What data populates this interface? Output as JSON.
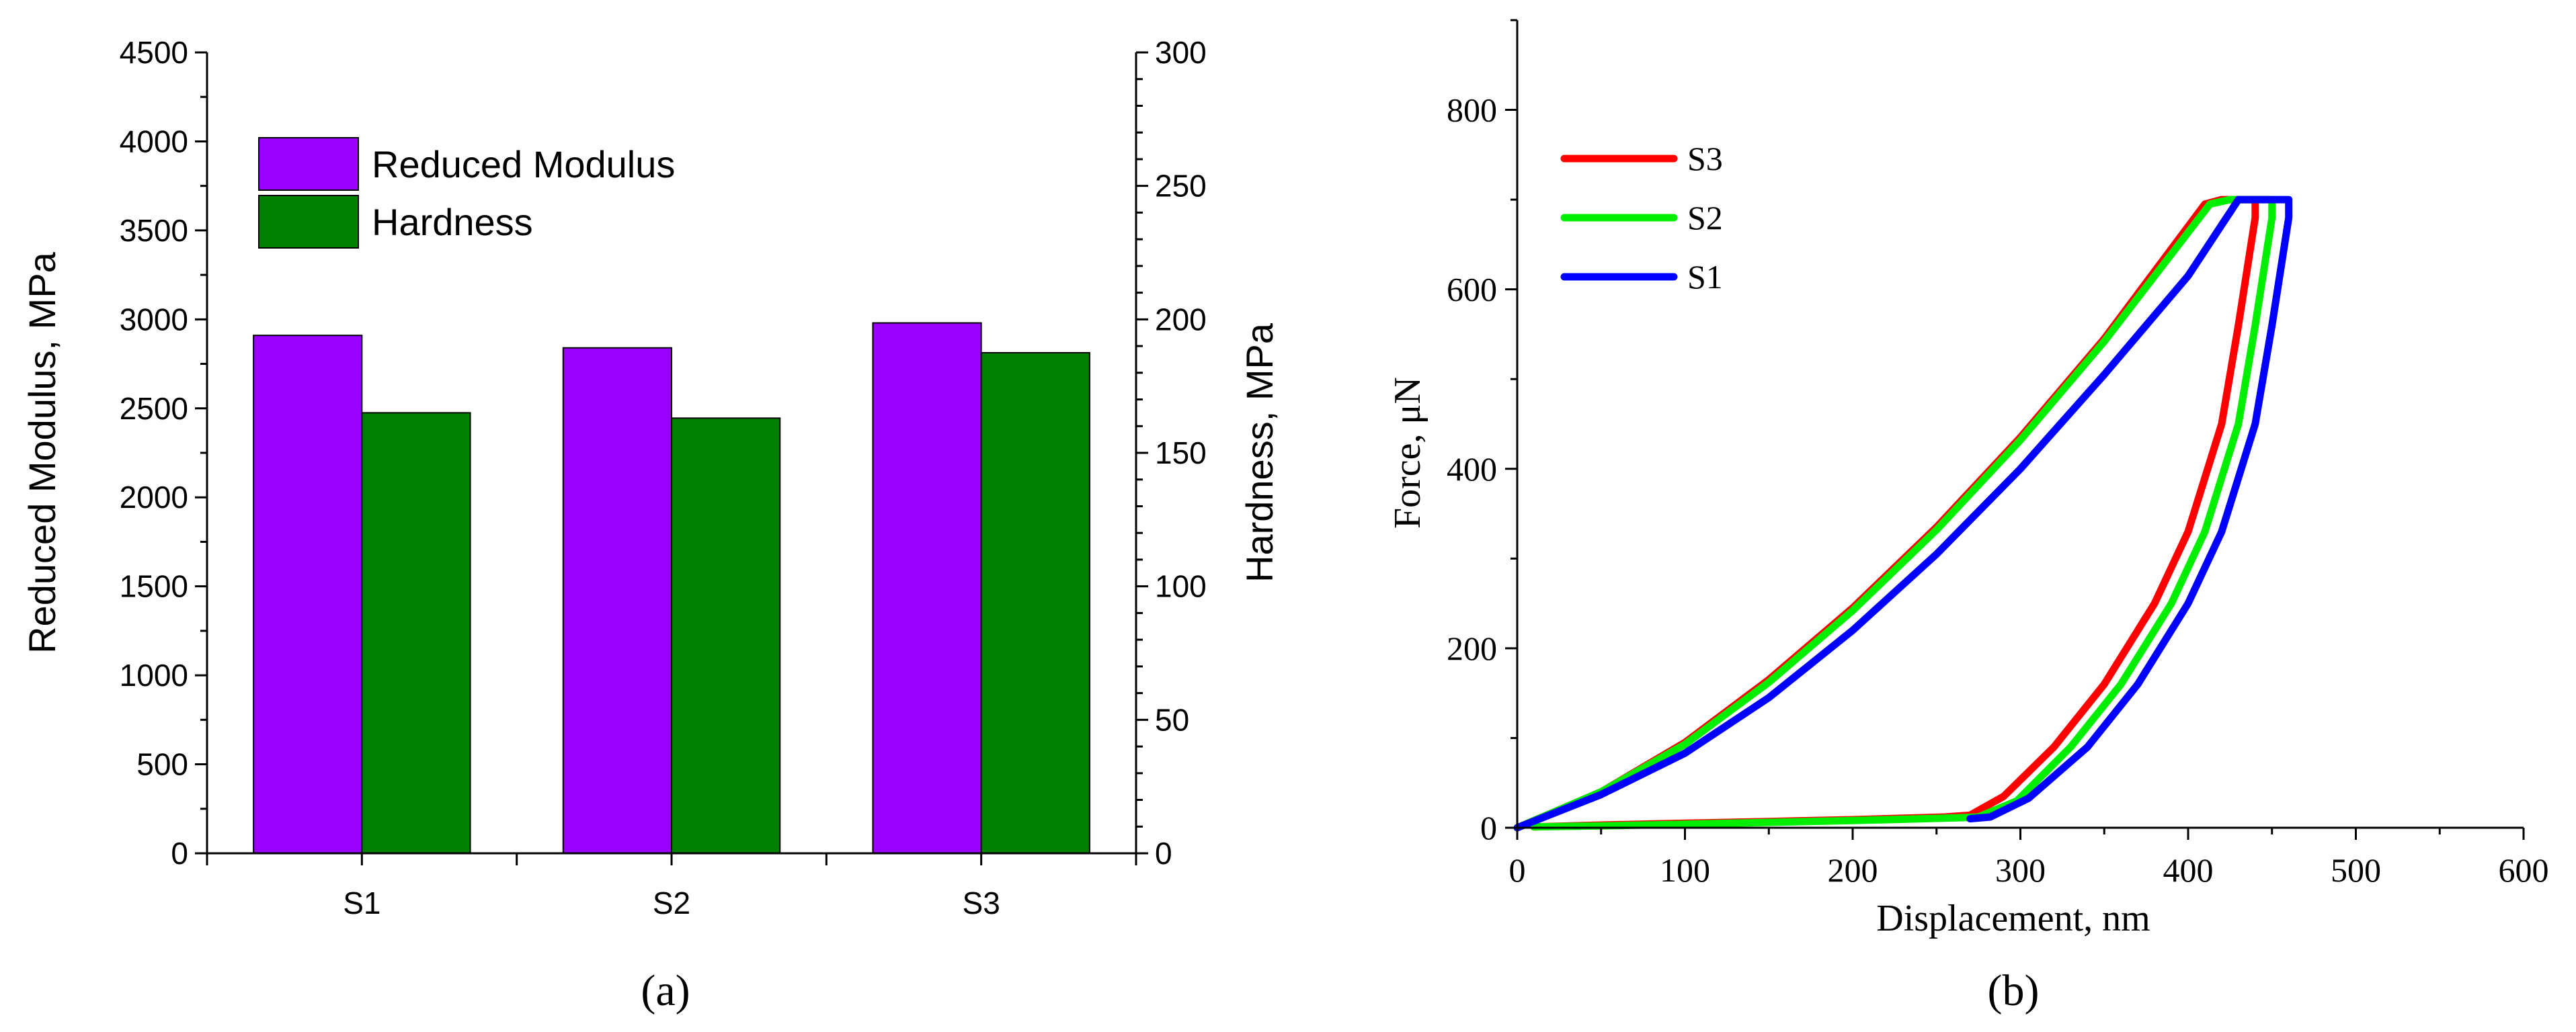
{
  "chart_data": [
    {
      "panel": "(a)",
      "type": "bar",
      "categories": [
        "S1",
        "S2",
        "S3"
      ],
      "series": [
        {
          "name": "Reduced Modulus",
          "axis": "left",
          "color": "#9900ff",
          "values": [
            2910,
            2840,
            2980
          ]
        },
        {
          "name": "Hardness",
          "axis": "right",
          "color": "#008000",
          "values": [
            165,
            163,
            187.5
          ]
        }
      ],
      "ylabel": "Reduced Modulus, MPa",
      "ylim": [
        0,
        4500
      ],
      "yticks": [
        0,
        500,
        1000,
        1500,
        2000,
        2500,
        3000,
        3500,
        4000,
        4500
      ],
      "y2label": "Hardness, MPa",
      "y2lim": [
        0,
        300
      ],
      "y2ticks": [
        0,
        50,
        100,
        150,
        200,
        250,
        300
      ],
      "legend_position": "top-left",
      "caption": "(a)"
    },
    {
      "panel": "(b)",
      "type": "line",
      "series": [
        {
          "name": "S3",
          "color": "#ff0000",
          "points": [
            [
              0,
              0
            ],
            [
              50,
              40
            ],
            [
              100,
              95
            ],
            [
              150,
              165
            ],
            [
              200,
              245
            ],
            [
              250,
              335
            ],
            [
              300,
              435
            ],
            [
              350,
              545
            ],
            [
              410,
              695
            ],
            [
              420,
              700
            ],
            [
              440,
              700
            ],
            [
              440,
              680
            ],
            [
              430,
              560
            ],
            [
              420,
              450
            ],
            [
              400,
              330
            ],
            [
              380,
              250
            ],
            [
              350,
              160
            ],
            [
              320,
              90
            ],
            [
              290,
              35
            ],
            [
              270,
              14
            ],
            [
              255,
              12
            ],
            [
              200,
              9
            ],
            [
              150,
              7
            ],
            [
              100,
              5
            ],
            [
              50,
              3
            ],
            [
              10,
              1
            ]
          ]
        },
        {
          "name": "S2",
          "color": "#00ee00",
          "points": [
            [
              0,
              0
            ],
            [
              50,
              40
            ],
            [
              100,
              93
            ],
            [
              150,
              162
            ],
            [
              200,
              242
            ],
            [
              250,
              332
            ],
            [
              300,
              432
            ],
            [
              350,
              542
            ],
            [
              413,
              695
            ],
            [
              425,
              700
            ],
            [
              450,
              700
            ],
            [
              450,
              680
            ],
            [
              440,
              560
            ],
            [
              430,
              450
            ],
            [
              410,
              330
            ],
            [
              390,
              250
            ],
            [
              360,
              160
            ],
            [
              330,
              90
            ],
            [
              298,
              30
            ],
            [
              275,
              12
            ],
            [
              262,
              11
            ],
            [
              200,
              8
            ],
            [
              150,
              6
            ],
            [
              100,
              4
            ],
            [
              50,
              2
            ],
            [
              10,
              1
            ]
          ]
        },
        {
          "name": "S1",
          "color": "#0000ff",
          "points": [
            [
              0,
              0
            ],
            [
              50,
              37
            ],
            [
              100,
              83
            ],
            [
              150,
              145
            ],
            [
              200,
              220
            ],
            [
              250,
              305
            ],
            [
              300,
              400
            ],
            [
              350,
              505
            ],
            [
              400,
              615
            ],
            [
              430,
              700
            ],
            [
              460,
              700
            ],
            [
              460,
              680
            ],
            [
              450,
              560
            ],
            [
              440,
              450
            ],
            [
              420,
              330
            ],
            [
              400,
              250
            ],
            [
              370,
              160
            ],
            [
              340,
              90
            ],
            [
              305,
              33
            ],
            [
              282,
              12
            ],
            [
              270,
              10
            ]
          ]
        }
      ],
      "xlabel": "Displacement, nm",
      "xlim": [
        0,
        600
      ],
      "xticks": [
        0,
        100,
        200,
        300,
        400,
        500,
        600
      ],
      "ylabel": "Force, μN",
      "ylim": [
        0,
        900
      ],
      "yticks": [
        0,
        200,
        400,
        600,
        800
      ],
      "legend_position": "top-left",
      "legend_order": [
        "S3",
        "S2",
        "S1"
      ],
      "caption": "(b)"
    }
  ]
}
